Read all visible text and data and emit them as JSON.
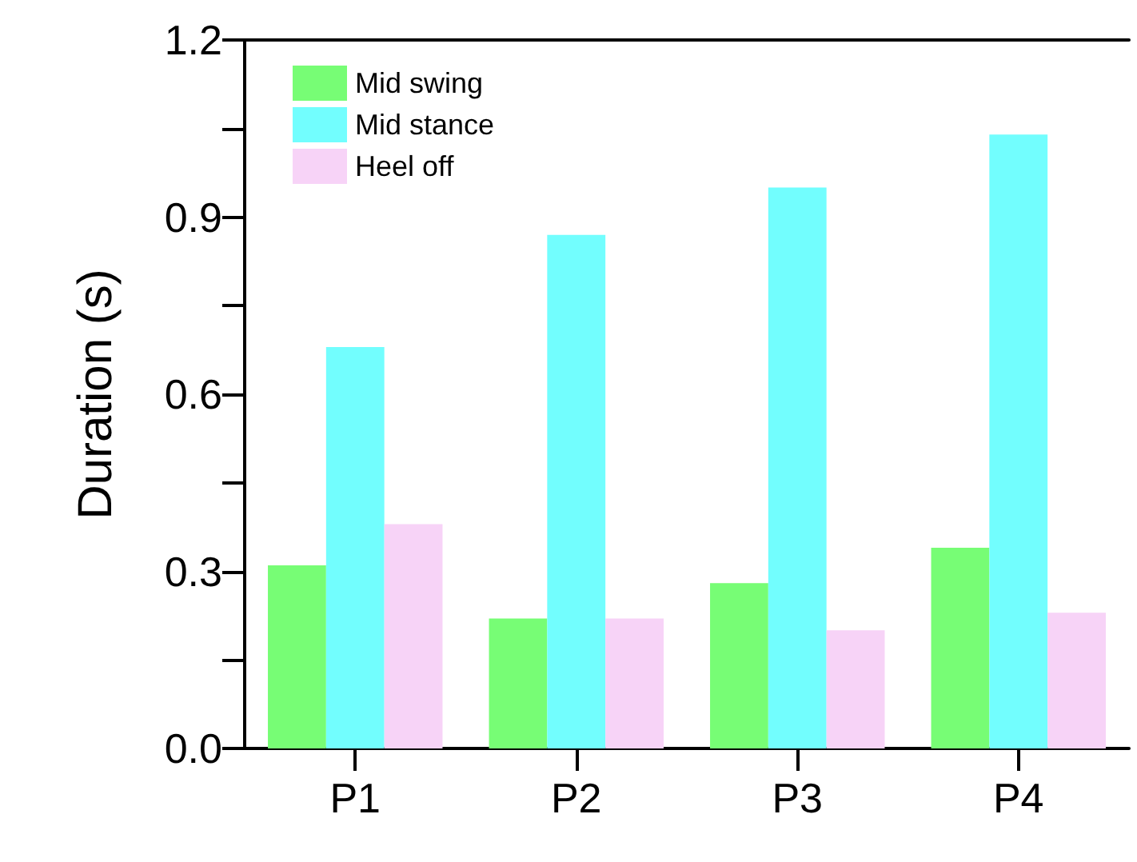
{
  "chart_data": {
    "type": "bar",
    "ylabel": "Duration (s)",
    "categories": [
      "P1",
      "P2",
      "P3",
      "P4"
    ],
    "series": [
      {
        "name": "Mid swing",
        "color": "#77fd75",
        "values": [
          0.31,
          0.22,
          0.28,
          0.34
        ]
      },
      {
        "name": "Mid stance",
        "color": "#72fefe",
        "values": [
          0.68,
          0.87,
          0.95,
          1.04
        ]
      },
      {
        "name": "Heel off",
        "color": "#f7d3f7",
        "values": [
          0.38,
          0.22,
          0.2,
          0.23
        ]
      }
    ],
    "ylim": [
      0,
      1.2
    ],
    "yticks": [
      {
        "value": 0,
        "label": "0.0"
      },
      {
        "value": 0.15,
        "label": null
      },
      0.3,
      {
        "value": 0.45,
        "label": null
      },
      0.6,
      {
        "value": 0.75,
        "label": null
      },
      0.9,
      {
        "value": 1.05,
        "label": null
      },
      1.2
    ],
    "legend": "top left",
    "grid": false
  }
}
